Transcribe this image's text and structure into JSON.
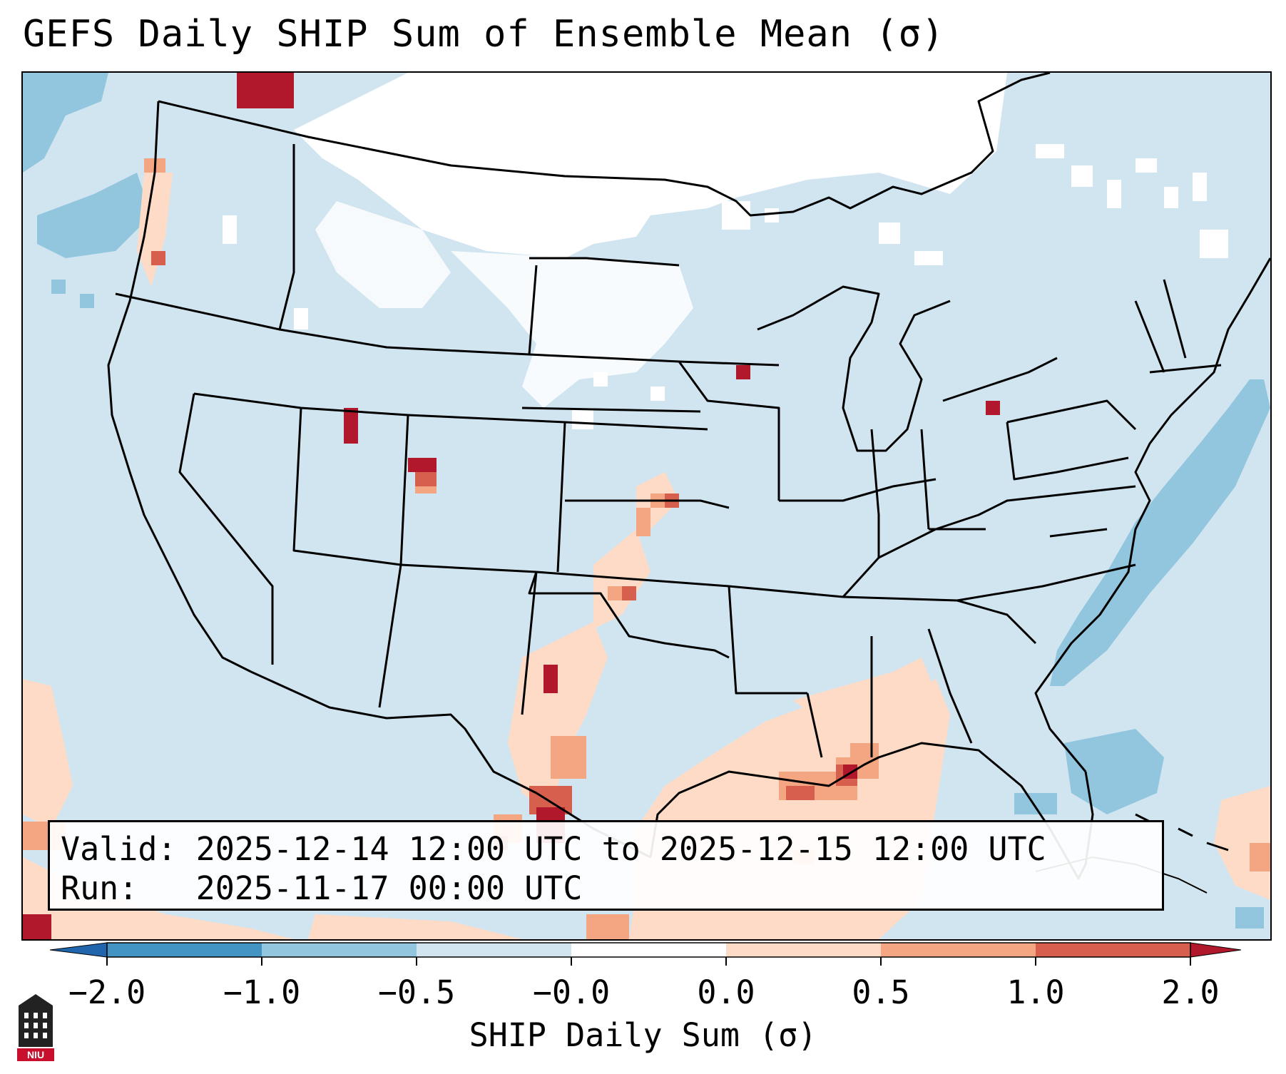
{
  "title": "GEFS Daily SHIP Sum of Ensemble Mean (σ)",
  "info": {
    "valid_line": "Valid: 2025-12-14 12:00 UTC to 2025-12-15 12:00 UTC",
    "run_line": "Run:   2025-11-17 00:00 UTC"
  },
  "colorbar": {
    "label": "SHIP Daily Sum (σ)",
    "ticks": [
      "−2.0",
      "−1.0",
      "−0.5",
      "−0.0",
      "0.0",
      "0.5",
      "1.0",
      "2.0"
    ],
    "bins": [
      {
        "range": "< -2.0",
        "color": "#2166ac"
      },
      {
        "range": "-2.0 to -1.0",
        "color": "#4393c3"
      },
      {
        "range": "-1.0 to -0.5",
        "color": "#92c5de"
      },
      {
        "range": "-0.5 to -0.0",
        "color": "#d1e5f0"
      },
      {
        "range": "-0.0 to 0.0",
        "color": "#ffffff"
      },
      {
        "range": "0.0 to 0.5",
        "color": "#fddbc7"
      },
      {
        "range": "0.5 to 1.0",
        "color": "#f4a582"
      },
      {
        "range": "1.0 to 2.0",
        "color": "#d6604d"
      },
      {
        "range": "> 2.0",
        "color": "#b2182b"
      }
    ]
  },
  "logo": {
    "text": "NIU",
    "color": "#c8102e"
  },
  "map": {
    "region": "Contiguous United States",
    "background_value_color": "#d1e5f0",
    "highlights": [
      {
        "area": "Gulf of Mexico / Gulf Coast",
        "color": "#fddbc7"
      },
      {
        "area": "Texas / Mexico border",
        "color": "#b2182b"
      },
      {
        "area": "Western Atlantic",
        "color": "#92c5de"
      }
    ]
  }
}
